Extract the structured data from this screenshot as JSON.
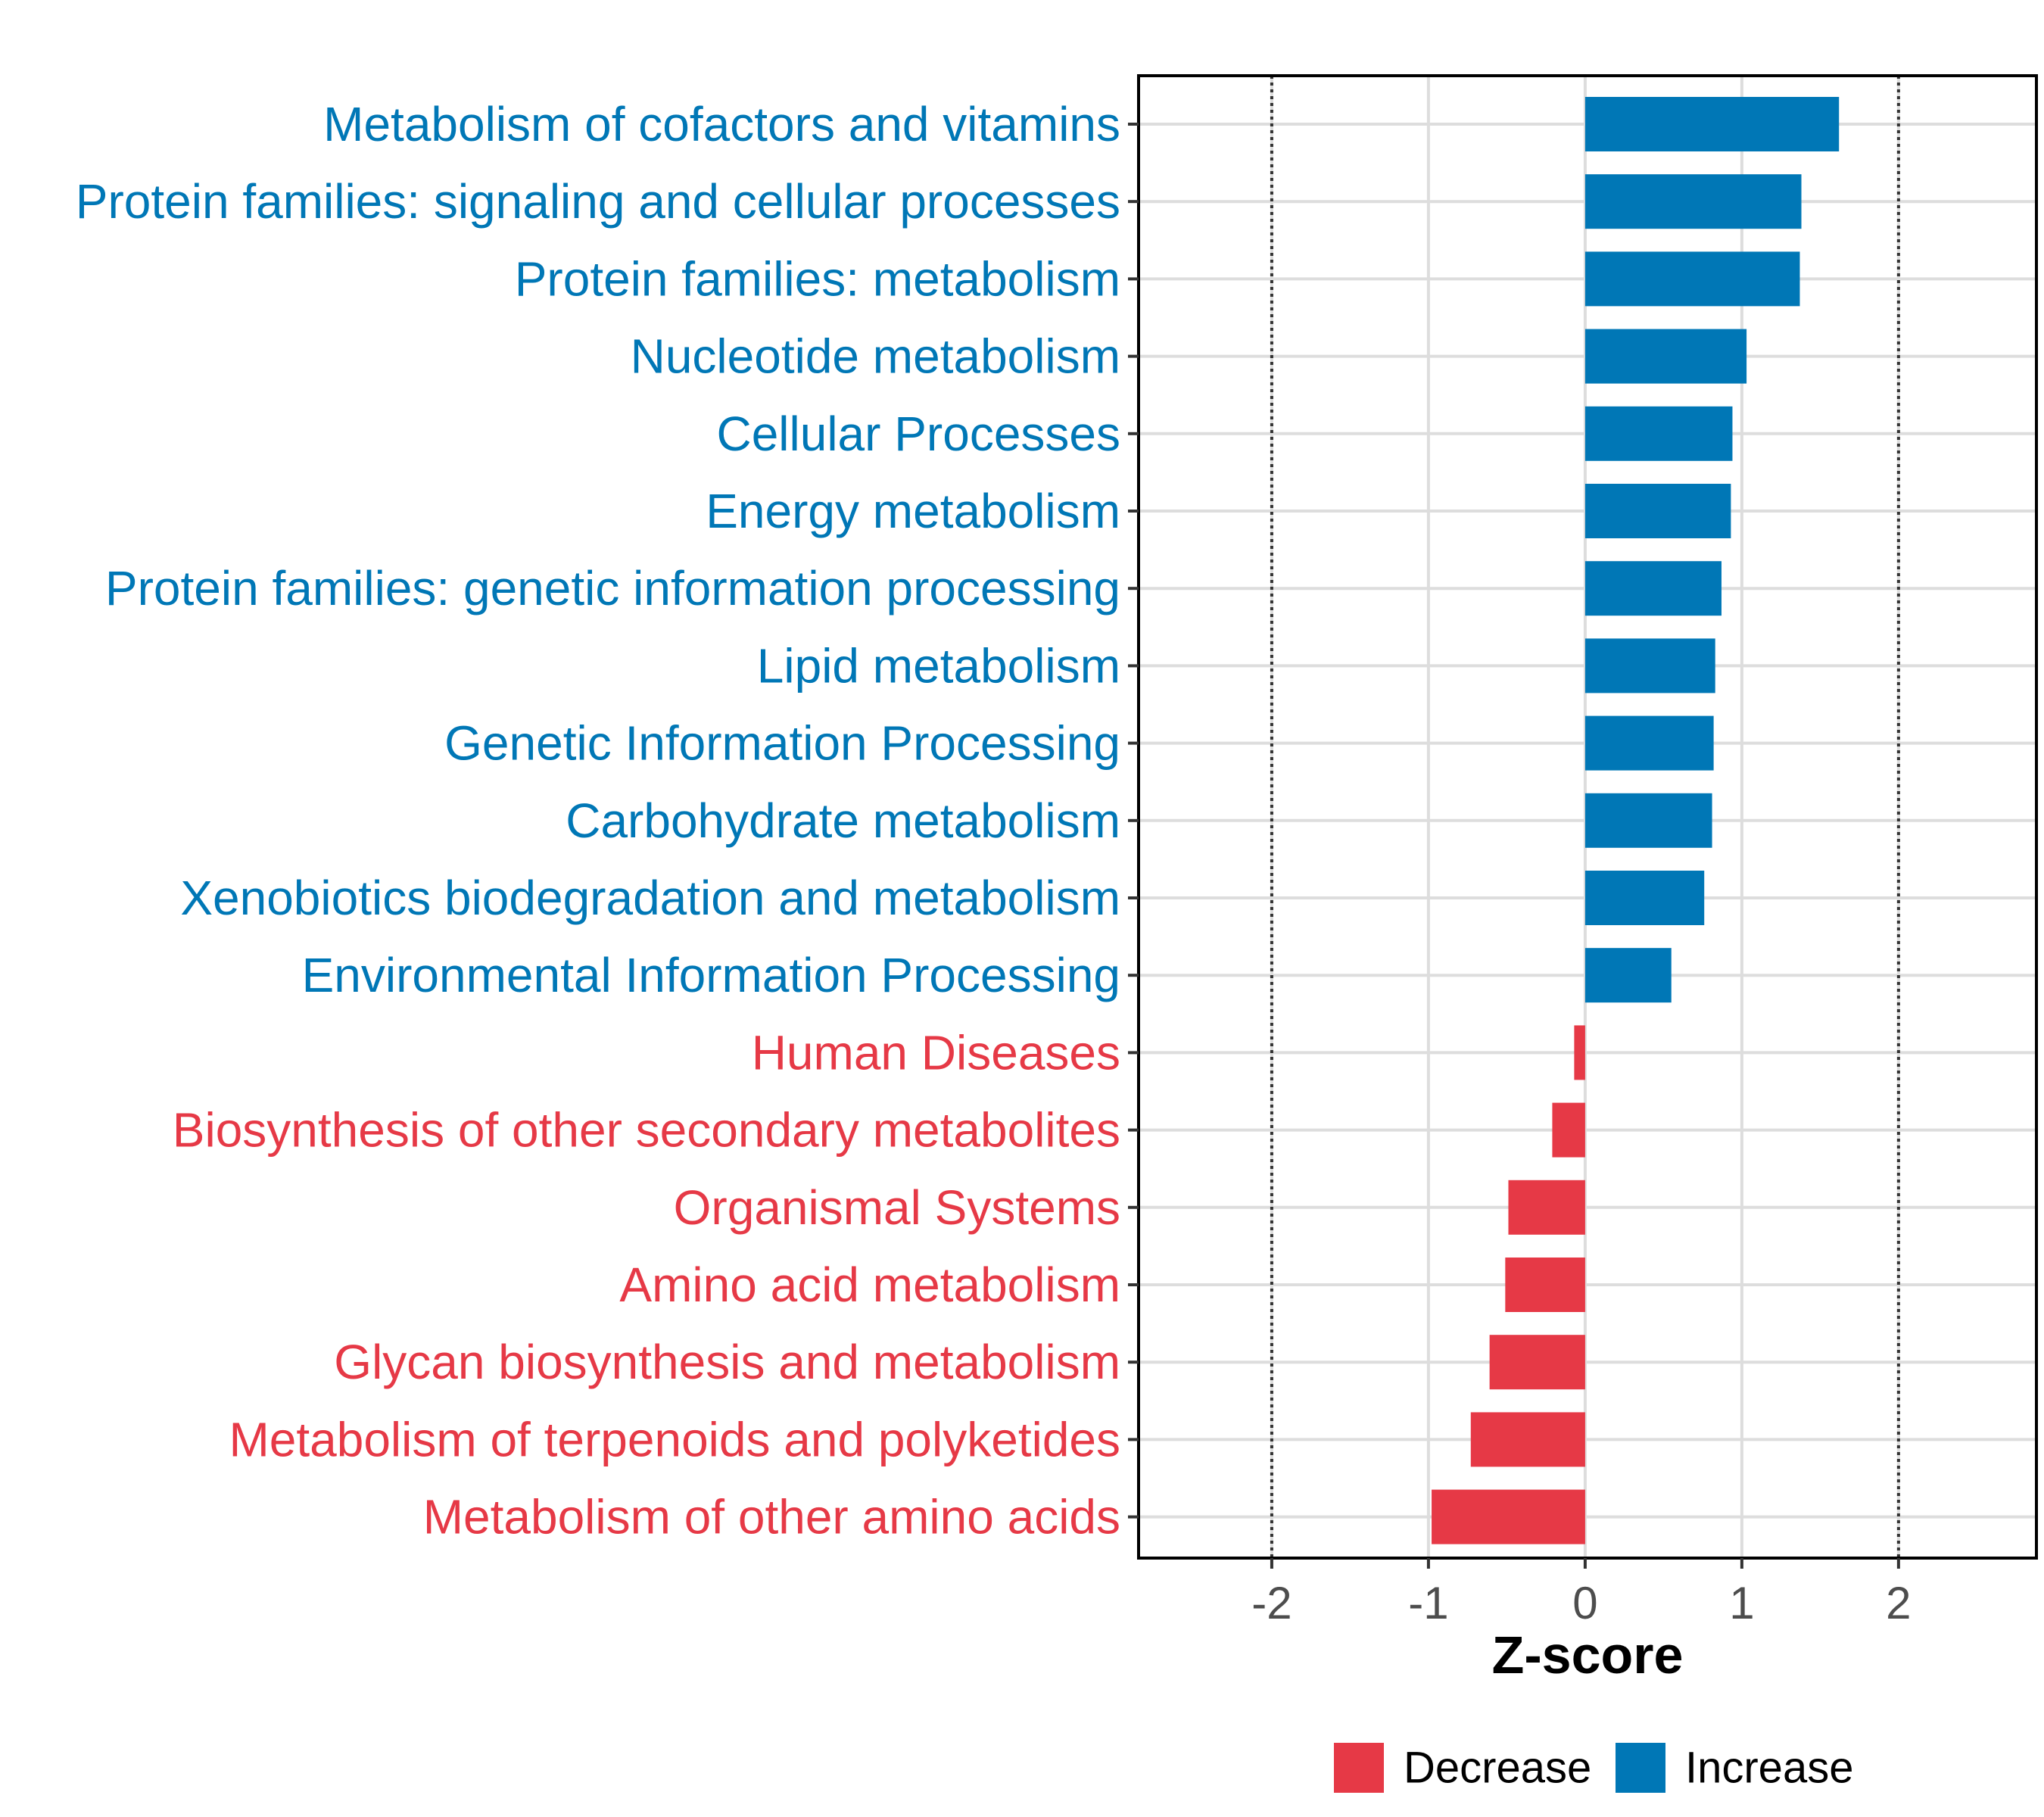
{
  "chart_data": {
    "type": "bar",
    "orientation": "horizontal",
    "categories": [
      "Metabolism of cofactors and vitamins",
      "Protein families: signaling and cellular processes",
      "Protein families: metabolism",
      "Nucleotide metabolism",
      "Cellular Processes",
      "Energy metabolism",
      "Protein families: genetic information processing",
      "Lipid metabolism",
      "Genetic Information Processing",
      "Carbohydrate metabolism",
      "Xenobiotics biodegradation and metabolism",
      "Environmental Information Processing",
      "Human Diseases",
      "Biosynthesis of other secondary metabolites",
      "Organismal Systems",
      "Amino acid metabolism",
      "Glycan biosynthesis and metabolism",
      "Metabolism of terpenoids and polyketides",
      "Metabolism of other amino acids"
    ],
    "values": [
      1.62,
      1.38,
      1.37,
      1.03,
      0.94,
      0.93,
      0.87,
      0.83,
      0.82,
      0.81,
      0.76,
      0.55,
      -0.07,
      -0.21,
      -0.49,
      -0.51,
      -0.61,
      -0.73,
      -0.98
    ],
    "groups": [
      "Increase",
      "Increase",
      "Increase",
      "Increase",
      "Increase",
      "Increase",
      "Increase",
      "Increase",
      "Increase",
      "Increase",
      "Increase",
      "Increase",
      "Decrease",
      "Decrease",
      "Decrease",
      "Decrease",
      "Decrease",
      "Decrease",
      "Decrease"
    ],
    "title": "",
    "xlabel": "Z-score",
    "ylabel": "",
    "xlim": [
      -2.85,
      2.88
    ],
    "xticks": [
      -2,
      -1,
      0,
      1,
      2
    ],
    "xtick_labels": [
      "-2",
      "-1",
      "0",
      "1",
      "2"
    ],
    "reference_lines": [
      -2,
      2
    ],
    "grid": true,
    "legend": {
      "position": "bottom",
      "entries": [
        {
          "label": "Decrease",
          "color": "#E63946"
        },
        {
          "label": "Increase",
          "color": "#0077B6"
        }
      ]
    },
    "colors": {
      "Increase": "#0077B6",
      "Decrease": "#E63946"
    }
  }
}
